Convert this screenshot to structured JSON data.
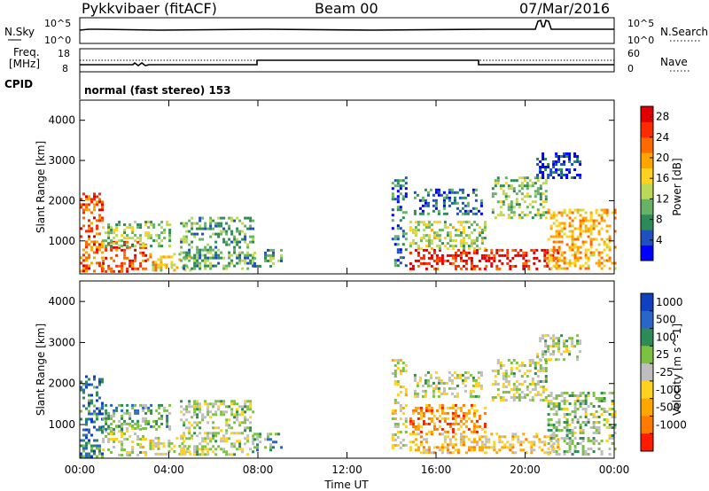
{
  "header": {
    "station": "Pykkvibaer (fitACF)",
    "beam": "Beam 00",
    "date": "07/Mar/2016"
  },
  "top_panels": {
    "nsky_label": "N.Sky",
    "nsearch_label": "N.Search",
    "noise_ticks_left": [
      "10^5",
      "10^0"
    ],
    "noise_ticks_right": [
      "10^5",
      "10^0"
    ],
    "freq_label_1": "Freq.",
    "freq_label_2": "[MHz]",
    "freq_ticks": [
      "18",
      "8"
    ],
    "nave_label": "Nave",
    "nave_ticks": [
      "60",
      "0"
    ],
    "cpid_label": "CPID",
    "cpid_text": "normal (fast stereo) 153"
  },
  "colors": {
    "power": [
      "#0000ff",
      "#2050c0",
      "#2e8b57",
      "#66b266",
      "#bcd85a",
      "#ffd21f",
      "#ffa500",
      "#ff6a00",
      "#ff2a00",
      "#e00000"
    ],
    "velocity": [
      "#1040c0",
      "#2a66c8",
      "#2e8b57",
      "#7dc142",
      "#bebebe",
      "#ffd21f",
      "#ffa500",
      "#ff7a00",
      "#ff1a00"
    ]
  },
  "chart_data": [
    {
      "type": "heatmap",
      "name": "power",
      "ylabel": "Slant Range [km]",
      "xlabel": "Time UT",
      "x_ticks": [
        "00:00",
        "04:00",
        "08:00",
        "12:00",
        "16:00",
        "20:00",
        "00:00"
      ],
      "x_range_hours": [
        0,
        24
      ],
      "y_ticks": [
        1000,
        2000,
        3000,
        4000
      ],
      "ylim": [
        180,
        4500
      ],
      "colorbar": {
        "label": "Power [dB]",
        "ticks": [
          4,
          8,
          12,
          16,
          20,
          24,
          28
        ],
        "range": [
          0,
          30
        ]
      },
      "regions": [
        {
          "t": [
            0.0,
            1.0
          ],
          "r": [
            250,
            2200
          ],
          "level": 0.78
        },
        {
          "t": [
            1.0,
            3.0
          ],
          "r": [
            250,
            1000
          ],
          "level": 0.85
        },
        {
          "t": [
            1.0,
            4.0
          ],
          "r": [
            900,
            1500
          ],
          "level": 0.4
        },
        {
          "t": [
            3.0,
            5.0
          ],
          "r": [
            250,
            700
          ],
          "level": 0.55
        },
        {
          "t": [
            4.5,
            7.8
          ],
          "r": [
            300,
            1600
          ],
          "level": 0.33
        },
        {
          "t": [
            7.8,
            9.0
          ],
          "r": [
            400,
            800
          ],
          "level": 0.3
        },
        {
          "t": [
            14.0,
            14.6
          ],
          "r": [
            400,
            2600
          ],
          "level": 0.22
        },
        {
          "t": [
            14.8,
            18.2
          ],
          "r": [
            300,
            800
          ],
          "level": 0.92
        },
        {
          "t": [
            14.8,
            18.2
          ],
          "r": [
            800,
            1500
          ],
          "level": 0.45
        },
        {
          "t": [
            15.0,
            18.0
          ],
          "r": [
            1700,
            2300
          ],
          "level": 0.18
        },
        {
          "t": [
            18.2,
            21.5
          ],
          "r": [
            300,
            800
          ],
          "level": 0.88
        },
        {
          "t": [
            18.5,
            21.0
          ],
          "r": [
            1600,
            2600
          ],
          "level": 0.38
        },
        {
          "t": [
            20.5,
            22.5
          ],
          "r": [
            2600,
            3200
          ],
          "level": 0.12
        },
        {
          "t": [
            21.0,
            24.0
          ],
          "r": [
            300,
            1800
          ],
          "level": 0.62
        }
      ]
    },
    {
      "type": "heatmap",
      "name": "velocity",
      "ylabel": "Slant Range [km]",
      "xlabel": "Time UT",
      "x_ticks": [
        "00:00",
        "04:00",
        "08:00",
        "12:00",
        "16:00",
        "20:00",
        "00:00"
      ],
      "x_range_hours": [
        0,
        24
      ],
      "y_ticks": [
        1000,
        2000,
        3000,
        4000
      ],
      "ylim": [
        180,
        4500
      ],
      "colorbar": {
        "label": "Velocity [m s^-1]",
        "ticks": [
          "1000",
          "500",
          "100",
          "25",
          "-25",
          "-100",
          "-500",
          "-1000"
        ]
      },
      "regions": [
        {
          "t": [
            0.0,
            1.0
          ],
          "r": [
            250,
            2200
          ],
          "level": 0.22
        },
        {
          "t": [
            1.0,
            3.0
          ],
          "r": [
            250,
            1000
          ],
          "level": 0.5
        },
        {
          "t": [
            1.0,
            4.0
          ],
          "r": [
            900,
            1500
          ],
          "level": 0.35
        },
        {
          "t": [
            3.0,
            5.0
          ],
          "r": [
            250,
            700
          ],
          "level": 0.5
        },
        {
          "t": [
            4.5,
            7.8
          ],
          "r": [
            300,
            1600
          ],
          "level": 0.48
        },
        {
          "t": [
            7.8,
            9.0
          ],
          "r": [
            400,
            800
          ],
          "level": 0.3
        },
        {
          "t": [
            14.0,
            14.6
          ],
          "r": [
            400,
            2600
          ],
          "level": 0.55
        },
        {
          "t": [
            14.8,
            18.2
          ],
          "r": [
            300,
            800
          ],
          "level": 0.66
        },
        {
          "t": [
            14.8,
            18.2
          ],
          "r": [
            800,
            1500
          ],
          "level": 0.78
        },
        {
          "t": [
            15.0,
            18.0
          ],
          "r": [
            1700,
            2300
          ],
          "level": 0.48
        },
        {
          "t": [
            18.2,
            21.5
          ],
          "r": [
            300,
            800
          ],
          "level": 0.62
        },
        {
          "t": [
            18.5,
            21.0
          ],
          "r": [
            1600,
            2600
          ],
          "level": 0.48
        },
        {
          "t": [
            20.5,
            22.5
          ],
          "r": [
            2600,
            3200
          ],
          "level": 0.48
        },
        {
          "t": [
            21.0,
            24.0
          ],
          "r": [
            300,
            1800
          ],
          "level": 0.42
        }
      ]
    }
  ]
}
